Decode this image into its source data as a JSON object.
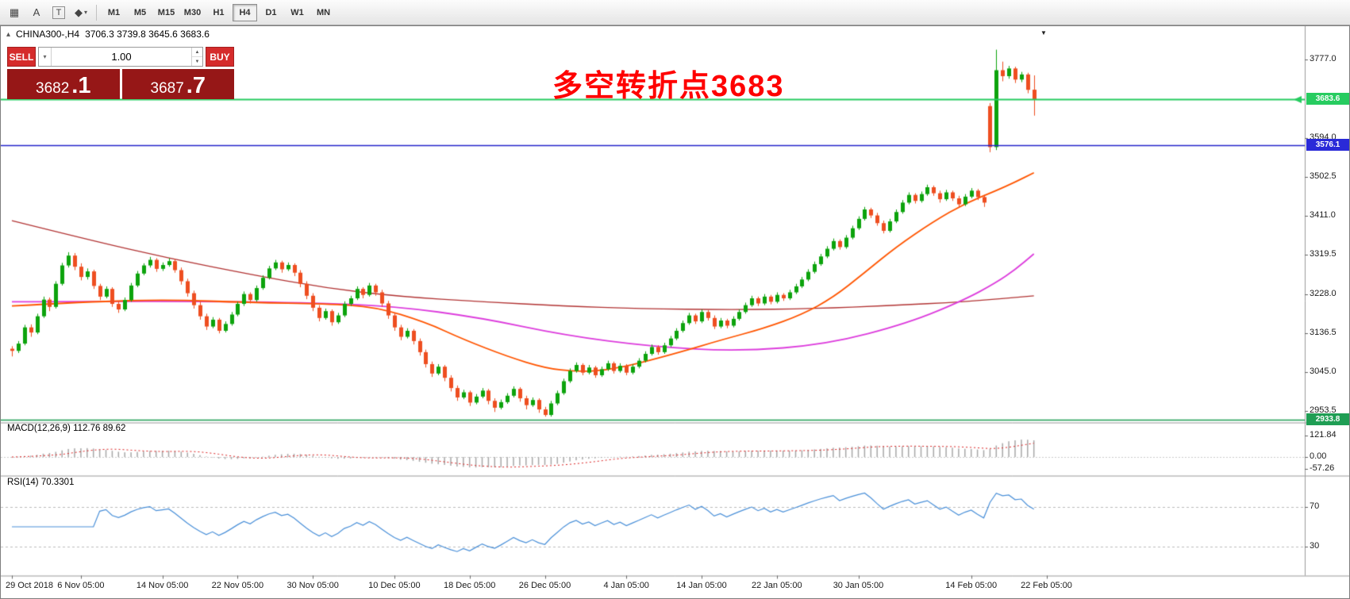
{
  "toolbar": {
    "tools": [
      {
        "name": "grid-tool",
        "glyph": "▦",
        "boxed": false,
        "caret": false
      },
      {
        "name": "text-label-tool",
        "glyph": "A",
        "boxed": false,
        "caret": false
      },
      {
        "name": "text-frame-tool",
        "glyph": "T",
        "boxed": true,
        "caret": false
      },
      {
        "name": "shapes-tool",
        "glyph": "◆",
        "boxed": false,
        "caret": true
      }
    ],
    "timeframes": [
      {
        "label": "M1",
        "active": false
      },
      {
        "label": "M5",
        "active": false
      },
      {
        "label": "M15",
        "active": false
      },
      {
        "label": "M30",
        "active": false
      },
      {
        "label": "H1",
        "active": false
      },
      {
        "label": "H4",
        "active": true
      },
      {
        "label": "D1",
        "active": false
      },
      {
        "label": "W1",
        "active": false
      },
      {
        "label": "MN",
        "active": false
      }
    ]
  },
  "chart": {
    "symbol": "CHINA300-,H4",
    "ohlc_text": "3706.3 3739.8 3645.6 3683.6",
    "collapse_icon": "▴",
    "scroll_marker": "▼"
  },
  "trade_panel": {
    "sell_label": "SELL",
    "buy_label": "BUY",
    "volume": "1.00",
    "caret_glyph": "▾",
    "spin_up": "▲",
    "spin_down": "▼",
    "sell_price_main": "3682",
    "sell_price_frac": ".1",
    "buy_price_main": "3687",
    "buy_price_frac": ".7"
  },
  "annotation": {
    "text": "多空转折点3683",
    "color": "#ff0000"
  },
  "price_axis": {
    "ticks": [
      "3777.0",
      "3594.0",
      "3502.5",
      "3411.0",
      "3319.5",
      "3228.0",
      "3136.5",
      "3045.0",
      "2953.5"
    ]
  },
  "hlines": [
    {
      "price": 3683.6,
      "label": "3683.6",
      "color": "#27cc60",
      "tag_bg": "#27cc60",
      "arrow": true
    },
    {
      "price": 3576.1,
      "label": "3576.1",
      "color": "#2323cc",
      "tag_bg": "#2a2ad8",
      "arrow": false
    },
    {
      "price": 2933.8,
      "label": "2933.8",
      "color": "#1f9e54",
      "tag_bg": "#1f9e54",
      "arrow": false
    }
  ],
  "macd_panel": {
    "label": "MACD(12,26,9) 112.76 89.62",
    "axis": [
      "121.84",
      "0.00",
      "-57.26"
    ]
  },
  "rsi_panel": {
    "label": "RSI(14) 70.3301",
    "axis": [
      "70",
      "30"
    ]
  },
  "time_axis": [
    {
      "label": "29 Oct 2018",
      "i": 0
    },
    {
      "label": "6 Nov 05:00",
      "i": 11
    },
    {
      "label": "14 Nov 05:00",
      "i": 24
    },
    {
      "label": "22 Nov 05:00",
      "i": 36
    },
    {
      "label": "30 Nov 05:00",
      "i": 48
    },
    {
      "label": "10 Dec 05:00",
      "i": 61
    },
    {
      "label": "18 Dec 05:00",
      "i": 73
    },
    {
      "label": "26 Dec 05:00",
      "i": 85
    },
    {
      "label": "4 Jan 05:00",
      "i": 98
    },
    {
      "label": "14 Jan 05:00",
      "i": 110
    },
    {
      "label": "22 Jan 05:00",
      "i": 122
    },
    {
      "label": "30 Jan 05:00",
      "i": 135
    },
    {
      "label": "14 Feb 05:00",
      "i": 153
    },
    {
      "label": "22 Feb 05:00",
      "i": 165
    }
  ],
  "colors": {
    "bull": "#0ca30c",
    "bear": "#ee4e20",
    "macd_bars": "#a8a8a8",
    "macd_signal": "#dd2222",
    "rsi_line": "#4a90d9",
    "level_dotted": "#bbbbbb"
  },
  "chart_data": {
    "type": "candlestick",
    "symbol": "CHINA300-",
    "timeframe": "H4",
    "title": "CHINA300-,H4 3706.3 3739.8 3645.6 3683.6",
    "last_bar": {
      "open": 3706.3,
      "high": 3739.8,
      "low": 3645.6,
      "close": 3683.6
    },
    "price_range": [
      2953.5,
      3777.0
    ],
    "price_tick_step": 91.5,
    "candles": [
      [
        3100,
        3106,
        3082,
        3095
      ],
      [
        3095,
        3118,
        3090,
        3112
      ],
      [
        3112,
        3156,
        3108,
        3150
      ],
      [
        3150,
        3157,
        3128,
        3138
      ],
      [
        3138,
        3182,
        3134,
        3176
      ],
      [
        3176,
        3222,
        3172,
        3215
      ],
      [
        3215,
        3220,
        3188,
        3198
      ],
      [
        3198,
        3258,
        3194,
        3252
      ],
      [
        3252,
        3301,
        3248,
        3295
      ],
      [
        3295,
        3326,
        3290,
        3318
      ],
      [
        3318,
        3324,
        3284,
        3292
      ],
      [
        3292,
        3300,
        3260,
        3268
      ],
      [
        3268,
        3288,
        3262,
        3281
      ],
      [
        3281,
        3285,
        3240,
        3247
      ],
      [
        3247,
        3252,
        3214,
        3222
      ],
      [
        3222,
        3246,
        3218,
        3240
      ],
      [
        3240,
        3244,
        3198,
        3205
      ],
      [
        3205,
        3212,
        3184,
        3192
      ],
      [
        3192,
        3220,
        3188,
        3214
      ],
      [
        3214,
        3254,
        3210,
        3248
      ],
      [
        3248,
        3282,
        3244,
        3276
      ],
      [
        3276,
        3300,
        3272,
        3295
      ],
      [
        3295,
        3315,
        3290,
        3308
      ],
      [
        3308,
        3312,
        3280,
        3287
      ],
      [
        3287,
        3302,
        3282,
        3296
      ],
      [
        3296,
        3312,
        3292,
        3305
      ],
      [
        3305,
        3310,
        3278,
        3284
      ],
      [
        3284,
        3290,
        3250,
        3258
      ],
      [
        3258,
        3264,
        3222,
        3230
      ],
      [
        3230,
        3236,
        3194,
        3202
      ],
      [
        3202,
        3210,
        3168,
        3176
      ],
      [
        3176,
        3182,
        3144,
        3152
      ],
      [
        3152,
        3174,
        3148,
        3168
      ],
      [
        3168,
        3172,
        3136,
        3142
      ],
      [
        3142,
        3164,
        3138,
        3158
      ],
      [
        3158,
        3186,
        3154,
        3180
      ],
      [
        3180,
        3210,
        3176,
        3205
      ],
      [
        3205,
        3234,
        3200,
        3228
      ],
      [
        3228,
        3232,
        3206,
        3214
      ],
      [
        3214,
        3248,
        3210,
        3242
      ],
      [
        3242,
        3272,
        3238,
        3266
      ],
      [
        3266,
        3294,
        3262,
        3288
      ],
      [
        3288,
        3308,
        3284,
        3302
      ],
      [
        3302,
        3306,
        3278,
        3286
      ],
      [
        3286,
        3302,
        3282,
        3296
      ],
      [
        3296,
        3300,
        3270,
        3278
      ],
      [
        3278,
        3284,
        3244,
        3252
      ],
      [
        3252,
        3258,
        3216,
        3224
      ],
      [
        3224,
        3230,
        3188,
        3196
      ],
      [
        3196,
        3202,
        3164,
        3172
      ],
      [
        3172,
        3194,
        3168,
        3188
      ],
      [
        3188,
        3192,
        3154,
        3162
      ],
      [
        3162,
        3184,
        3158,
        3178
      ],
      [
        3178,
        3211,
        3174,
        3205
      ],
      [
        3205,
        3224,
        3200,
        3218
      ],
      [
        3218,
        3246,
        3214,
        3240
      ],
      [
        3240,
        3244,
        3218,
        3226
      ],
      [
        3226,
        3254,
        3222,
        3248
      ],
      [
        3248,
        3252,
        3224,
        3232
      ],
      [
        3232,
        3238,
        3198,
        3206
      ],
      [
        3206,
        3212,
        3170,
        3178
      ],
      [
        3178,
        3184,
        3142,
        3150
      ],
      [
        3150,
        3156,
        3120,
        3128
      ],
      [
        3128,
        3148,
        3124,
        3142
      ],
      [
        3142,
        3146,
        3110,
        3118
      ],
      [
        3118,
        3124,
        3084,
        3092
      ],
      [
        3092,
        3098,
        3056,
        3064
      ],
      [
        3064,
        3070,
        3034,
        3042
      ],
      [
        3042,
        3064,
        3038,
        3058
      ],
      [
        3058,
        3062,
        3024,
        3032
      ],
      [
        3032,
        3038,
        3000,
        3008
      ],
      [
        3008,
        3014,
        2978,
        2986
      ],
      [
        2986,
        3004,
        2982,
        2998
      ],
      [
        2998,
        3002,
        2966,
        2974
      ],
      [
        2974,
        2994,
        2970,
        2988
      ],
      [
        2988,
        3008,
        2984,
        3002
      ],
      [
        3002,
        3006,
        2970,
        2978
      ],
      [
        2978,
        2984,
        2952,
        2962
      ],
      [
        2962,
        2981,
        2958,
        2975
      ],
      [
        2975,
        2996,
        2971,
        2990
      ],
      [
        2990,
        3012,
        2986,
        3006
      ],
      [
        3006,
        3010,
        2976,
        2984
      ],
      [
        2984,
        2990,
        2958,
        2968
      ],
      [
        2968,
        2986,
        2964,
        2980
      ],
      [
        2980,
        2984,
        2950,
        2958
      ],
      [
        2958,
        2964,
        2941,
        2945
      ],
      [
        2945,
        2978,
        2941,
        2972
      ],
      [
        2972,
        3002,
        2968,
        2996
      ],
      [
        2996,
        3030,
        2992,
        3024
      ],
      [
        3024,
        3054,
        3020,
        3048
      ],
      [
        3048,
        3068,
        3044,
        3062
      ],
      [
        3062,
        3066,
        3038,
        3044
      ],
      [
        3044,
        3062,
        3040,
        3056
      ],
      [
        3056,
        3060,
        3032,
        3038
      ],
      [
        3038,
        3058,
        3034,
        3052
      ],
      [
        3052,
        3072,
        3048,
        3066
      ],
      [
        3066,
        3070,
        3042,
        3048
      ],
      [
        3048,
        3066,
        3044,
        3060
      ],
      [
        3060,
        3064,
        3038,
        3044
      ],
      [
        3044,
        3064,
        3040,
        3058
      ],
      [
        3058,
        3078,
        3054,
        3072
      ],
      [
        3072,
        3094,
        3068,
        3088
      ],
      [
        3088,
        3110,
        3084,
        3104
      ],
      [
        3104,
        3108,
        3086,
        3092
      ],
      [
        3092,
        3114,
        3088,
        3108
      ],
      [
        3108,
        3130,
        3104,
        3124
      ],
      [
        3124,
        3148,
        3120,
        3142
      ],
      [
        3142,
        3166,
        3138,
        3160
      ],
      [
        3160,
        3184,
        3156,
        3178
      ],
      [
        3178,
        3182,
        3158,
        3164
      ],
      [
        3164,
        3192,
        3160,
        3186
      ],
      [
        3186,
        3190,
        3166,
        3172
      ],
      [
        3172,
        3178,
        3146,
        3152
      ],
      [
        3152,
        3172,
        3148,
        3166
      ],
      [
        3166,
        3170,
        3148,
        3154
      ],
      [
        3154,
        3176,
        3150,
        3170
      ],
      [
        3170,
        3192,
        3166,
        3186
      ],
      [
        3186,
        3208,
        3182,
        3202
      ],
      [
        3202,
        3224,
        3198,
        3218
      ],
      [
        3218,
        3222,
        3200,
        3206
      ],
      [
        3206,
        3228,
        3202,
        3222
      ],
      [
        3222,
        3226,
        3204,
        3210
      ],
      [
        3210,
        3232,
        3206,
        3226
      ],
      [
        3226,
        3230,
        3212,
        3218
      ],
      [
        3218,
        3238,
        3214,
        3232
      ],
      [
        3232,
        3252,
        3228,
        3246
      ],
      [
        3246,
        3268,
        3242,
        3262
      ],
      [
        3262,
        3286,
        3258,
        3280
      ],
      [
        3280,
        3304,
        3276,
        3298
      ],
      [
        3298,
        3322,
        3294,
        3316
      ],
      [
        3316,
        3340,
        3312,
        3334
      ],
      [
        3334,
        3358,
        3330,
        3352
      ],
      [
        3352,
        3356,
        3332,
        3338
      ],
      [
        3338,
        3366,
        3334,
        3360
      ],
      [
        3360,
        3388,
        3356,
        3382
      ],
      [
        3382,
        3410,
        3378,
        3404
      ],
      [
        3404,
        3432,
        3400,
        3426
      ],
      [
        3426,
        3430,
        3406,
        3412
      ],
      [
        3412,
        3418,
        3388,
        3394
      ],
      [
        3394,
        3400,
        3370,
        3376
      ],
      [
        3376,
        3404,
        3372,
        3398
      ],
      [
        3398,
        3426,
        3394,
        3420
      ],
      [
        3420,
        3448,
        3416,
        3442
      ],
      [
        3442,
        3466,
        3438,
        3460
      ],
      [
        3460,
        3464,
        3440,
        3446
      ],
      [
        3446,
        3468,
        3442,
        3462
      ],
      [
        3462,
        3484,
        3458,
        3478
      ],
      [
        3478,
        3482,
        3458,
        3464
      ],
      [
        3464,
        3470,
        3442,
        3450
      ],
      [
        3450,
        3472,
        3446,
        3466
      ],
      [
        3466,
        3470,
        3446,
        3452
      ],
      [
        3452,
        3458,
        3430,
        3438
      ],
      [
        3438,
        3462,
        3434,
        3456
      ],
      [
        3456,
        3476,
        3452,
        3470
      ],
      [
        3470,
        3474,
        3448,
        3455
      ],
      [
        3455,
        3460,
        3432,
        3442
      ],
      [
        3668,
        3675,
        3560,
        3572
      ],
      [
        3572,
        3800,
        3565,
        3752
      ],
      [
        3752,
        3772,
        3726,
        3738
      ],
      [
        3738,
        3762,
        3732,
        3756
      ],
      [
        3756,
        3760,
        3722,
        3730
      ],
      [
        3730,
        3748,
        3724,
        3742
      ],
      [
        3742,
        3746,
        3698,
        3706
      ],
      [
        3706.3,
        3739.8,
        3645.6,
        3683.6
      ]
    ],
    "moving_averages": [
      {
        "name": "ma-slow",
        "color": "#b23434",
        "points": [
          [
            0,
            3400
          ],
          [
            12,
            3356
          ],
          [
            25,
            3312
          ],
          [
            38,
            3274
          ],
          [
            50,
            3242
          ],
          [
            62,
            3222
          ],
          [
            75,
            3210
          ],
          [
            88,
            3200
          ],
          [
            100,
            3194
          ],
          [
            115,
            3191
          ],
          [
            128,
            3194
          ],
          [
            140,
            3201
          ],
          [
            152,
            3210
          ],
          [
            163,
            3224
          ]
        ]
      },
      {
        "name": "ma-mid",
        "color": "#dd3ddd",
        "points": [
          [
            0,
            3210
          ],
          [
            25,
            3212
          ],
          [
            47,
            3208
          ],
          [
            61,
            3200
          ],
          [
            75,
            3172
          ],
          [
            88,
            3132
          ],
          [
            102,
            3105
          ],
          [
            116,
            3094
          ],
          [
            130,
            3110
          ],
          [
            143,
            3160
          ],
          [
            152,
            3215
          ],
          [
            157,
            3255
          ],
          [
            160,
            3285
          ],
          [
            163,
            3322
          ]
        ]
      },
      {
        "name": "ma-fast",
        "color": "#ff5500",
        "points": [
          [
            0,
            3200
          ],
          [
            12,
            3210
          ],
          [
            25,
            3215
          ],
          [
            38,
            3208
          ],
          [
            50,
            3205
          ],
          [
            58,
            3198
          ],
          [
            66,
            3162
          ],
          [
            72,
            3122
          ],
          [
            79,
            3082
          ],
          [
            85,
            3055
          ],
          [
            90,
            3046
          ],
          [
            95,
            3050
          ],
          [
            100,
            3066
          ],
          [
            107,
            3094
          ],
          [
            113,
            3120
          ],
          [
            120,
            3148
          ],
          [
            126,
            3180
          ],
          [
            131,
            3220
          ],
          [
            136,
            3278
          ],
          [
            141,
            3338
          ],
          [
            147,
            3398
          ],
          [
            152,
            3440
          ],
          [
            157,
            3470
          ],
          [
            160,
            3490
          ],
          [
            163,
            3512
          ]
        ]
      }
    ],
    "indicators": {
      "macd": {
        "fast": 12,
        "slow": 26,
        "signal": 9,
        "values_text": "112.76 89.62",
        "axis_labels": [
          "121.84",
          "0.00",
          "-57.26"
        ]
      },
      "rsi": {
        "period": 14,
        "value_text": "70.3301",
        "levels": [
          30,
          70
        ]
      }
    }
  }
}
